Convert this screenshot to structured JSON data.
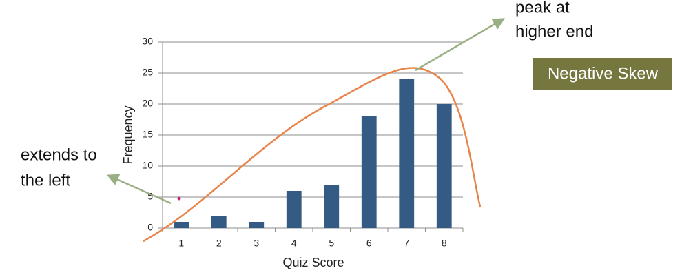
{
  "chart_data": {
    "type": "bar",
    "x_label": "Quiz Score",
    "y_label": "Frequency",
    "categories": [
      "1",
      "2",
      "3",
      "4",
      "5",
      "6",
      "7",
      "8"
    ],
    "values": [
      1,
      2,
      1,
      6,
      7,
      18,
      24,
      20
    ],
    "color": "#335b84",
    "ylim": [
      0,
      30
    ],
    "yticks": [
      0,
      5,
      10,
      15,
      20,
      25,
      30
    ],
    "grid": true,
    "annotations": {
      "left": [
        "extends to",
        "the left"
      ],
      "peak": [
        "peak at",
        "higher end"
      ],
      "skew": "Negative Skew"
    }
  }
}
